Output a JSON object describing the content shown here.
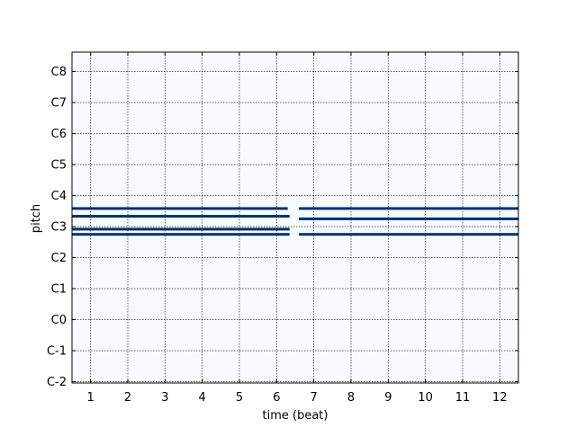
{
  "chart_data": {
    "type": "heatmap",
    "subtype": "piano-roll",
    "xlabel": "time (beat)",
    "ylabel": "pitch",
    "xlim": [
      0.5,
      12.5
    ],
    "ylim": [
      -0.5,
      127.5
    ],
    "x_ticks": [
      {
        "value": 1,
        "label": "1"
      },
      {
        "value": 2,
        "label": "2"
      },
      {
        "value": 3,
        "label": "3"
      },
      {
        "value": 4,
        "label": "4"
      },
      {
        "value": 5,
        "label": "5"
      },
      {
        "value": 6,
        "label": "6"
      },
      {
        "value": 7,
        "label": "7"
      },
      {
        "value": 8,
        "label": "8"
      },
      {
        "value": 9,
        "label": "9"
      },
      {
        "value": 10,
        "label": "10"
      },
      {
        "value": 11,
        "label": "11"
      },
      {
        "value": 12,
        "label": "12"
      }
    ],
    "y_ticks": [
      {
        "value": 0,
        "label": "C-2"
      },
      {
        "value": 12,
        "label": "C-1"
      },
      {
        "value": 24,
        "label": "C0"
      },
      {
        "value": 36,
        "label": "C1"
      },
      {
        "value": 48,
        "label": "C2"
      },
      {
        "value": 60,
        "label": "C3"
      },
      {
        "value": 72,
        "label": "C4"
      },
      {
        "value": 84,
        "label": "C5"
      },
      {
        "value": 96,
        "label": "C6"
      },
      {
        "value": 108,
        "label": "C7"
      },
      {
        "value": 120,
        "label": "C8"
      }
    ],
    "grid": true,
    "colors": {
      "background": "#f7fbff",
      "note": "#08306b",
      "grid": "#000000"
    },
    "notes": [
      {
        "pitch": 57,
        "start": 0.5,
        "end": 6.35
      },
      {
        "pitch": 59,
        "start": 0.5,
        "end": 6.35
      },
      {
        "pitch": 64,
        "start": 0.5,
        "end": 6.35
      },
      {
        "pitch": 67,
        "start": 0.5,
        "end": 6.3
      },
      {
        "pitch": 57,
        "start": 6.6,
        "end": 12.5
      },
      {
        "pitch": 63,
        "start": 6.6,
        "end": 12.5
      },
      {
        "pitch": 67,
        "start": 6.6,
        "end": 12.5
      }
    ]
  }
}
